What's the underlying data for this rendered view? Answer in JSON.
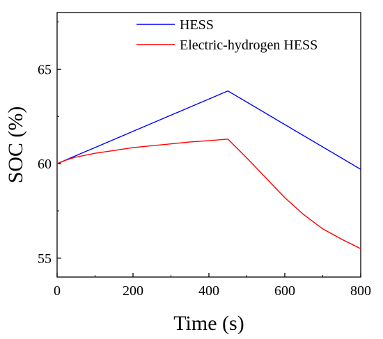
{
  "chart_data": {
    "type": "line",
    "title": "",
    "xlabel": "Time (s)",
    "ylabel": "SOC (%)",
    "xlim": [
      0,
      800
    ],
    "ylim": [
      54,
      68
    ],
    "x_ticks": [
      0,
      200,
      400,
      600,
      800
    ],
    "y_ticks": [
      55,
      60,
      65
    ],
    "x_tick_labels": [
      "0",
      "200",
      "400",
      "600",
      "800"
    ],
    "y_tick_labels": [
      "55",
      "60",
      "65"
    ],
    "grid": false,
    "legend_position": "top-right",
    "series": [
      {
        "name": "HESS",
        "color": "#0000ff",
        "points": [
          [
            0,
            60.0
          ],
          [
            450,
            63.85
          ],
          [
            800,
            59.7
          ]
        ]
      },
      {
        "name": "Electric-hydrogen HESS",
        "color": "#ff0000",
        "points": [
          [
            0,
            60.0
          ],
          [
            25,
            60.2
          ],
          [
            50,
            60.35
          ],
          [
            100,
            60.55
          ],
          [
            150,
            60.7
          ],
          [
            200,
            60.85
          ],
          [
            250,
            60.95
          ],
          [
            300,
            61.05
          ],
          [
            350,
            61.15
          ],
          [
            400,
            61.22
          ],
          [
            450,
            61.3
          ],
          [
            500,
            60.3
          ],
          [
            550,
            59.25
          ],
          [
            600,
            58.2
          ],
          [
            650,
            57.3
          ],
          [
            700,
            56.55
          ],
          [
            750,
            56.0
          ],
          [
            800,
            55.5
          ]
        ]
      }
    ]
  }
}
